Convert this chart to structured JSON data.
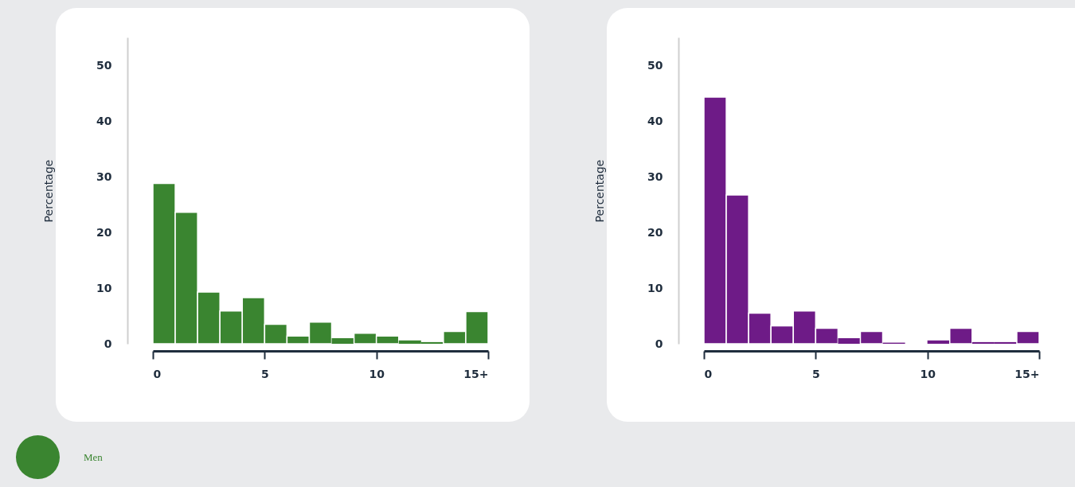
{
  "chart_data": [
    {
      "type": "histogram",
      "ylabel": "Percentage",
      "bins": [
        0,
        1,
        2,
        3,
        4,
        5,
        6,
        7,
        8,
        9,
        10,
        11,
        12,
        13,
        14,
        15
      ],
      "xlim": [
        0,
        15
      ],
      "xticks": [
        0,
        5,
        10,
        {
          "value": 15,
          "label": "15+"
        }
      ],
      "ylim": [
        0,
        55
      ],
      "yticks": [
        0,
        10,
        20,
        30,
        40,
        50
      ],
      "legend": "bottom left",
      "series": [
        {
          "name": "Men",
          "color": "#3a8530",
          "values": [
            28.8,
            23.6,
            9.3,
            5.9,
            8.3,
            3.5,
            1.4,
            3.9,
            1.0,
            1.9,
            1.4,
            0.6,
            0.3,
            2.2,
            5.8
          ]
        }
      ]
    },
    {
      "type": "histogram",
      "ylabel": "Percentage",
      "bins": [
        0,
        1,
        2,
        3,
        4,
        5,
        6,
        7,
        8,
        9,
        10,
        11,
        12,
        13,
        14,
        15
      ],
      "xlim": [
        0,
        15
      ],
      "xticks": [
        0,
        5,
        10,
        {
          "value": 15,
          "label": "15+"
        }
      ],
      "ylim": [
        0,
        55
      ],
      "yticks": [
        0,
        10,
        20,
        30,
        40,
        50
      ],
      "series": [
        {
          "color": "#6e1b87",
          "values": [
            44.3,
            26.7,
            5.5,
            3.2,
            5.9,
            2.8,
            1.0,
            2.2,
            0.2,
            0,
            0.6,
            2.8,
            0.3,
            0.3,
            2.2
          ]
        }
      ]
    }
  ]
}
